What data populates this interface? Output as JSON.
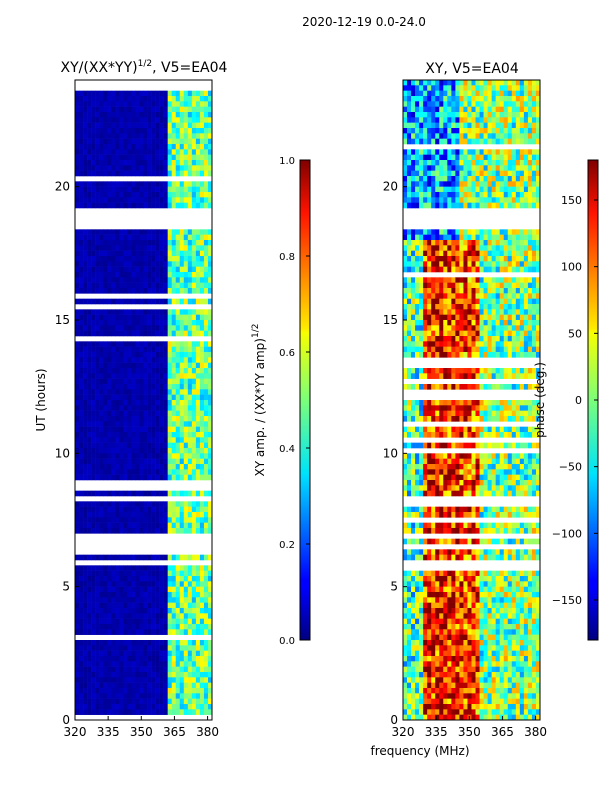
{
  "figure": {
    "suptitle": "2020-12-19 0.0-24.0",
    "xlabel_shared": "frequency (MHz)"
  },
  "chart_data": [
    {
      "type": "heatmap",
      "title_main": "XY/(XX*YY)",
      "title_sup": "1/2",
      "title_rest": ", V5=EA04",
      "xlabel": "",
      "ylabel": "UT (hours)",
      "x_range": [
        320,
        382
      ],
      "y_range": [
        0,
        24
      ],
      "x_ticks": [
        320,
        335,
        350,
        365,
        380
      ],
      "y_ticks": [
        0,
        5,
        10,
        15,
        20
      ],
      "flagged_channels_below_mhz": 362,
      "colorbar": {
        "label_main": "XY amp. / (XX*YY amp)",
        "label_sup": "1/2",
        "range": [
          0.0,
          1.0
        ],
        "ticks": [
          "0.0",
          "0.2",
          "0.4",
          "0.6",
          "0.8",
          "1.0"
        ],
        "colormap": "jet"
      }
    },
    {
      "type": "heatmap",
      "title": "XY, V5=EA04",
      "xlabel": "",
      "ylabel": "",
      "x_range": [
        320,
        382
      ],
      "y_range": [
        0,
        24
      ],
      "x_ticks": [
        320,
        335,
        350,
        365,
        380
      ],
      "y_ticks": [
        0,
        5,
        10,
        15,
        20
      ],
      "colorbar": {
        "label": "phase (deg.)",
        "range": [
          -180,
          180
        ],
        "ticks": [
          "150",
          "100",
          "50",
          "0",
          "−50",
          "−100",
          "−150"
        ],
        "tick_values": [
          150,
          100,
          50,
          0,
          -50,
          -100,
          -150
        ],
        "colormap": "jet"
      }
    }
  ]
}
